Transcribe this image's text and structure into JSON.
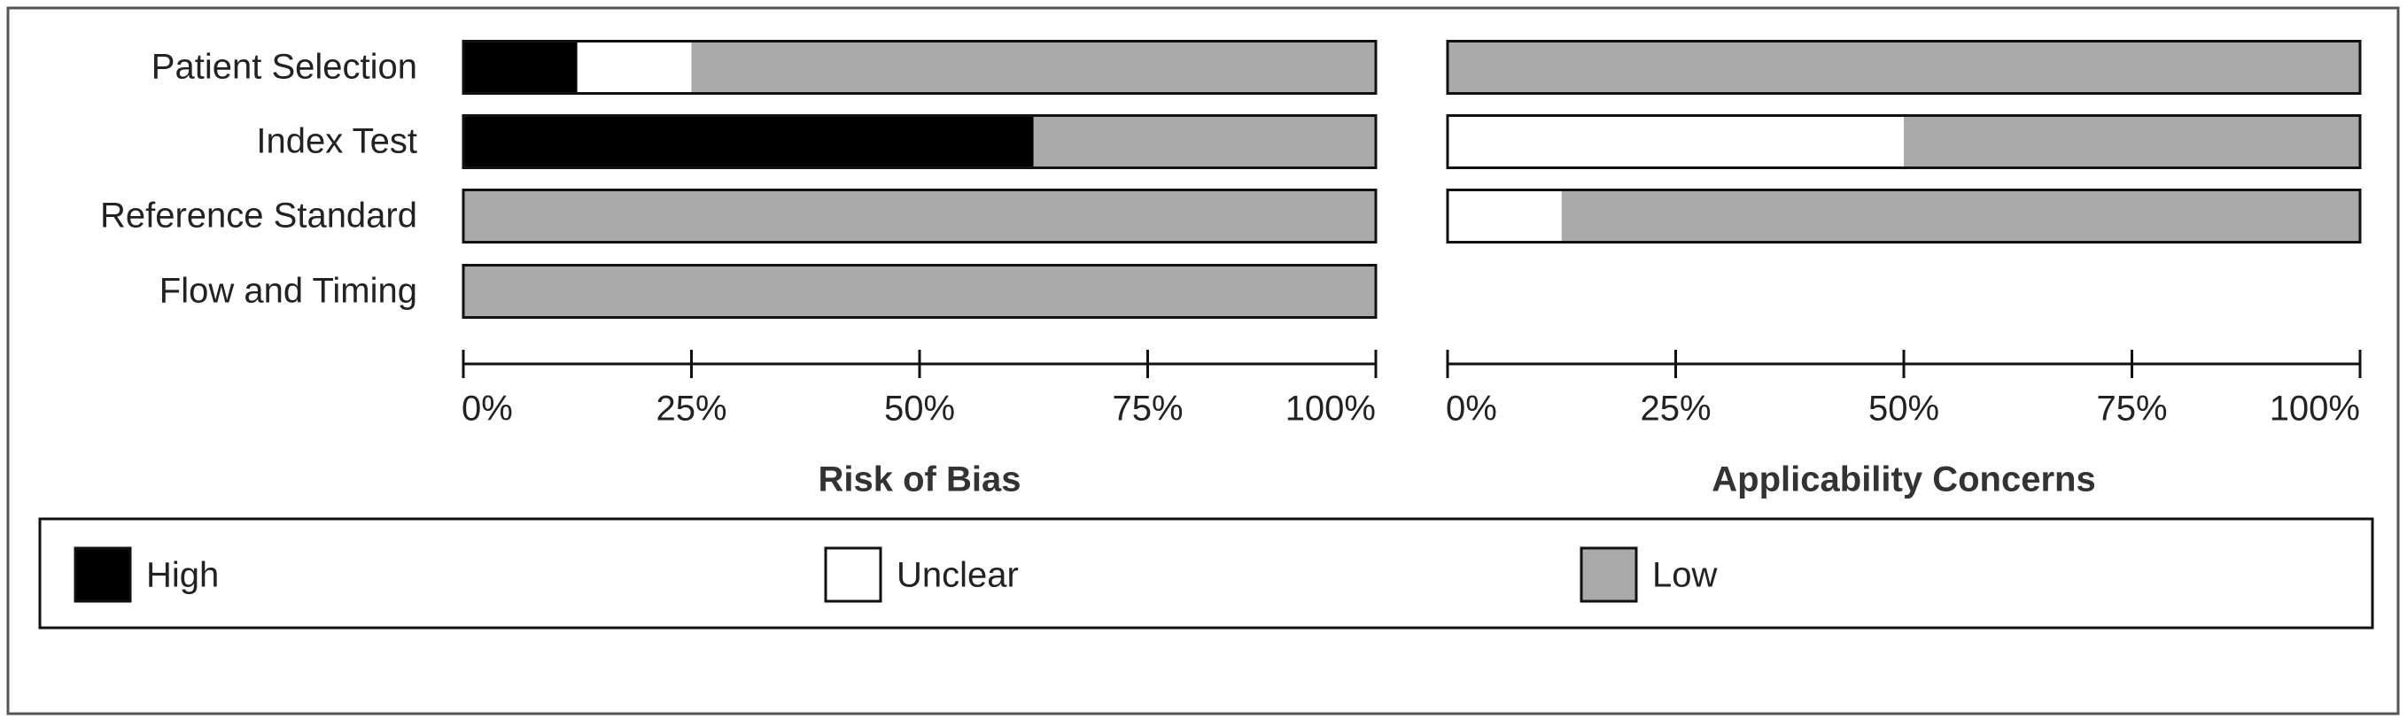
{
  "chart_data": [
    {
      "type": "bar",
      "orientation": "horizontal",
      "stacked": true,
      "xlabel": "Risk of Bias",
      "categories": [
        "Patient Selection",
        "Index Test",
        "Reference Standard",
        "Flow and Timing"
      ],
      "series": [
        {
          "name": "High",
          "color": "#000000",
          "values": [
            12.5,
            62.5,
            0,
            0
          ]
        },
        {
          "name": "Unclear",
          "color": "#ffffff",
          "values": [
            12.5,
            0,
            0,
            0
          ]
        },
        {
          "name": "Low",
          "color": "#aaaaaa",
          "values": [
            75,
            37.5,
            100,
            100
          ]
        }
      ],
      "xlim": [
        0,
        100
      ],
      "xticks": [
        {
          "value": 0,
          "label": "0%"
        },
        {
          "value": 25,
          "label": "25%"
        },
        {
          "value": 50,
          "label": "50%"
        },
        {
          "value": 75,
          "label": "75%"
        },
        {
          "value": 100,
          "label": "100%"
        }
      ]
    },
    {
      "type": "bar",
      "orientation": "horizontal",
      "stacked": true,
      "xlabel": "Applicability Concerns",
      "series": [
        {
          "color": "#000000",
          "values": [
            0,
            0,
            0,
            null
          ]
        },
        {
          "color": "#ffffff",
          "values": [
            0,
            50,
            12.5,
            null
          ]
        },
        {
          "color": "#aaaaaa",
          "values": [
            100,
            50,
            87.5,
            null
          ]
        }
      ],
      "xlim": [
        0,
        100
      ],
      "xticks": [
        {
          "value": 0,
          "label": "0%"
        },
        {
          "value": 25,
          "label": "25%"
        },
        {
          "value": 50,
          "label": "50%"
        },
        {
          "value": 75,
          "label": "75%"
        },
        {
          "value": 100,
          "label": "100%"
        }
      ]
    }
  ]
}
